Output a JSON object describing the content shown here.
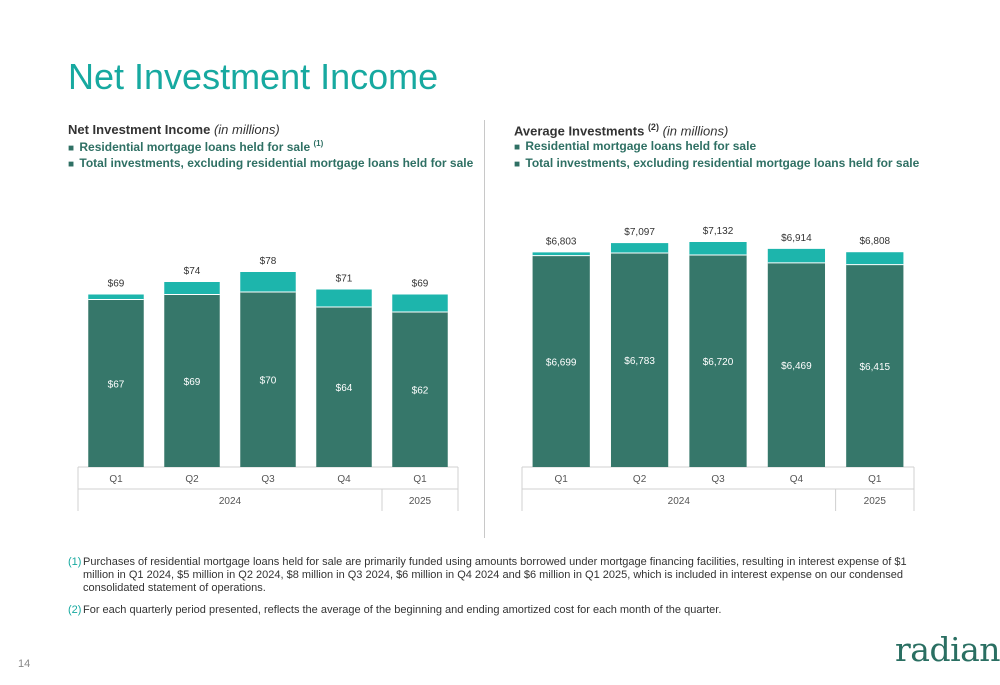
{
  "title": "Net Investment Income",
  "page_number": "14",
  "logo_text": "radian",
  "colors": {
    "dark": "#36776A",
    "light": "#1DB5AC",
    "accent": "#17A9A0"
  },
  "left_panel": {
    "heading": "Net Investment Income",
    "heading_note": "(in millions)",
    "legend_residential": "Residential mortgage loans held for sale",
    "legend_residential_ref": "(1)",
    "legend_total": "Total investments, excluding residential mortgage loans held for sale",
    "legend_marker": "■"
  },
  "right_panel": {
    "heading": "Average Investments",
    "heading_ref": "(2)",
    "heading_note": "(in millions)",
    "legend_residential": "Residential mortgage loans held for sale",
    "legend_total": "Total investments, excluding residential mortgage loans held for sale",
    "legend_marker": "■"
  },
  "footnotes": [
    {
      "num": "(1)",
      "text": "Purchases of residential mortgage loans held for sale are primarily funded using amounts borrowed under mortgage financing facilities, resulting in interest expense of $1 million in Q1 2024, $5 million in Q2 2024, $8 million in Q3 2024, $6 million in Q4 2024 and $6 million in Q1 2025, which is included in interest expense on our condensed consolidated statement of operations."
    },
    {
      "num": "(2)",
      "text": "For each quarterly period presented, reflects the average of the beginning and ending amortized cost for each month of the quarter."
    }
  ],
  "chart_data": [
    {
      "type": "bar",
      "stacked": true,
      "categories": [
        "Q1",
        "Q2",
        "Q3",
        "Q4",
        "Q1"
      ],
      "groups": [
        {
          "label": "2024",
          "count": 4
        },
        {
          "label": "2025",
          "count": 1
        }
      ],
      "series": [
        {
          "name": "Total investments, excluding residential mortgage loans held for sale",
          "values": [
            67,
            69,
            70,
            64,
            62
          ],
          "labels": [
            "$67",
            "$69",
            "$70",
            "$64",
            "$62"
          ]
        },
        {
          "name": "Residential mortgage loans held for sale",
          "values": [
            2,
            5,
            8,
            7,
            7
          ]
        }
      ],
      "totals": [
        69,
        74,
        78,
        71,
        69
      ],
      "total_labels": [
        "$69",
        "$74",
        "$78",
        "$71",
        "$69"
      ],
      "ylim": [
        0,
        78
      ]
    },
    {
      "type": "bar",
      "stacked": true,
      "categories": [
        "Q1",
        "Q2",
        "Q3",
        "Q4",
        "Q1"
      ],
      "groups": [
        {
          "label": "2024",
          "count": 4
        },
        {
          "label": "2025",
          "count": 1
        }
      ],
      "series": [
        {
          "name": "Total investments, excluding residential mortgage loans held for sale",
          "values": [
            6699,
            6783,
            6720,
            6469,
            6415
          ],
          "labels": [
            "$6,699",
            "$6,783",
            "$6,720",
            "$6,469",
            "$6,415"
          ]
        },
        {
          "name": "Residential mortgage loans held for sale",
          "values": [
            104,
            314,
            412,
            445,
            393
          ]
        }
      ],
      "totals": [
        6803,
        7097,
        7132,
        6914,
        6808
      ],
      "total_labels": [
        "$6,803",
        "$7,097",
        "$7,132",
        "$6,914",
        "$6,808"
      ],
      "ylim": [
        0,
        7132
      ]
    }
  ]
}
